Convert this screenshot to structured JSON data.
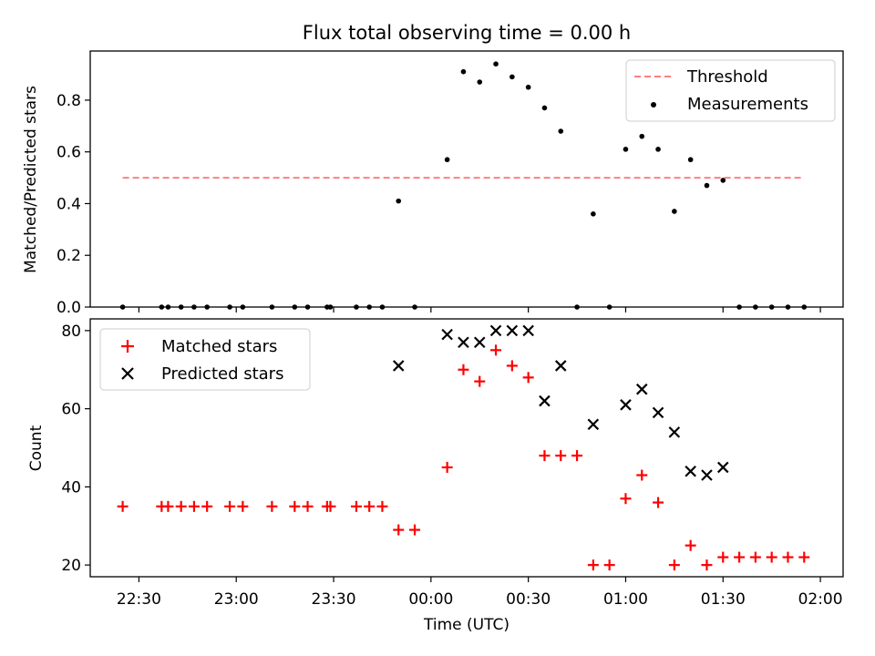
{
  "title": "Flux total observing time = 0.00 h",
  "chart_data": [
    {
      "type": "scatter",
      "title": "Flux total observing time = 0.00 h",
      "xlabel": "",
      "ylabel": "Matched/Predicted stars",
      "xlim": [
        "22:15",
        "02:07"
      ],
      "ylim": [
        0,
        0.99
      ],
      "yticks": [
        0.0,
        0.2,
        0.4,
        0.6,
        0.8
      ],
      "ytick_labels": [
        "0.0",
        "0.2",
        "0.4",
        "0.6",
        "0.8"
      ],
      "legend_position": "upper right",
      "series": [
        {
          "name": "Threshold",
          "kind": "dashed-line",
          "color": "#ff7f7f",
          "x": [
            "22:25",
            "01:55"
          ],
          "y": [
            0.5,
            0.5
          ]
        },
        {
          "name": "Measurements",
          "kind": "dots",
          "color": "#000000",
          "x": [
            "22:25",
            "22:37",
            "22:39",
            "22:43",
            "22:47",
            "22:51",
            "22:58",
            "23:02",
            "23:11",
            "23:18",
            "23:22",
            "23:28",
            "23:29",
            "23:37",
            "23:41",
            "23:45",
            "23:50",
            "23:55",
            "00:05",
            "00:10",
            "00:15",
            "00:20",
            "00:25",
            "00:30",
            "00:35",
            "00:40",
            "00:45",
            "00:50",
            "00:55",
            "01:00",
            "01:05",
            "01:10",
            "01:15",
            "01:20",
            "01:25",
            "01:30",
            "01:35",
            "01:40",
            "01:45",
            "01:50",
            "01:55"
          ],
          "y": [
            0,
            0,
            0,
            0,
            0,
            0,
            0,
            0,
            0,
            0,
            0,
            0,
            0,
            0,
            0,
            0,
            0.41,
            0,
            0.57,
            0.91,
            0.87,
            0.94,
            0.89,
            0.85,
            0.77,
            0.68,
            0,
            0.36,
            0,
            0.61,
            0.66,
            0.61,
            0.37,
            0.57,
            0.47,
            0.49,
            0,
            0,
            0,
            0,
            0
          ]
        }
      ]
    },
    {
      "type": "scatter",
      "title": "",
      "xlabel": "Time (UTC)",
      "ylabel": "Count",
      "xlim": [
        "22:15",
        "02:07"
      ],
      "ylim": [
        17,
        83
      ],
      "yticks": [
        20,
        40,
        60,
        80
      ],
      "ytick_labels": [
        "20",
        "40",
        "60",
        "80"
      ],
      "xticks": [
        "22:30",
        "23:00",
        "23:30",
        "00:00",
        "00:30",
        "01:00",
        "01:30",
        "02:00"
      ],
      "xtick_labels": [
        "22:30",
        "23:00",
        "23:30",
        "00:00",
        "00:30",
        "01:00",
        "01:30",
        "02:00"
      ],
      "legend_position": "upper left",
      "series": [
        {
          "name": "Matched stars",
          "kind": "plus",
          "color": "#ff0000",
          "x": [
            "22:25",
            "22:37",
            "22:39",
            "22:43",
            "22:47",
            "22:51",
            "22:58",
            "23:02",
            "23:11",
            "23:18",
            "23:22",
            "23:28",
            "23:29",
            "23:37",
            "23:41",
            "23:45",
            "23:50",
            "23:55",
            "00:05",
            "00:10",
            "00:15",
            "00:20",
            "00:25",
            "00:30",
            "00:35",
            "00:40",
            "00:45",
            "00:50",
            "00:55",
            "01:00",
            "01:05",
            "01:10",
            "01:15",
            "01:20",
            "01:25",
            "01:30",
            "01:35",
            "01:40",
            "01:45",
            "01:50",
            "01:55"
          ],
          "y": [
            35,
            35,
            35,
            35,
            35,
            35,
            35,
            35,
            35,
            35,
            35,
            35,
            35,
            35,
            35,
            35,
            29,
            29,
            45,
            70,
            67,
            75,
            71,
            68,
            48,
            48,
            48,
            20,
            20,
            37,
            43,
            36,
            20,
            25,
            20,
            22,
            22,
            22,
            22,
            22,
            22
          ]
        },
        {
          "name": "Predicted stars",
          "kind": "cross",
          "color": "#000000",
          "x": [
            "23:50",
            "00:05",
            "00:10",
            "00:15",
            "00:20",
            "00:25",
            "00:30",
            "00:35",
            "00:40",
            "00:50",
            "01:00",
            "01:05",
            "01:10",
            "01:15",
            "01:20",
            "01:25",
            "01:30"
          ],
          "y": [
            71,
            79,
            77,
            77,
            80,
            80,
            80,
            62,
            71,
            56,
            61,
            65,
            59,
            54,
            44,
            43,
            45
          ]
        }
      ]
    }
  ]
}
